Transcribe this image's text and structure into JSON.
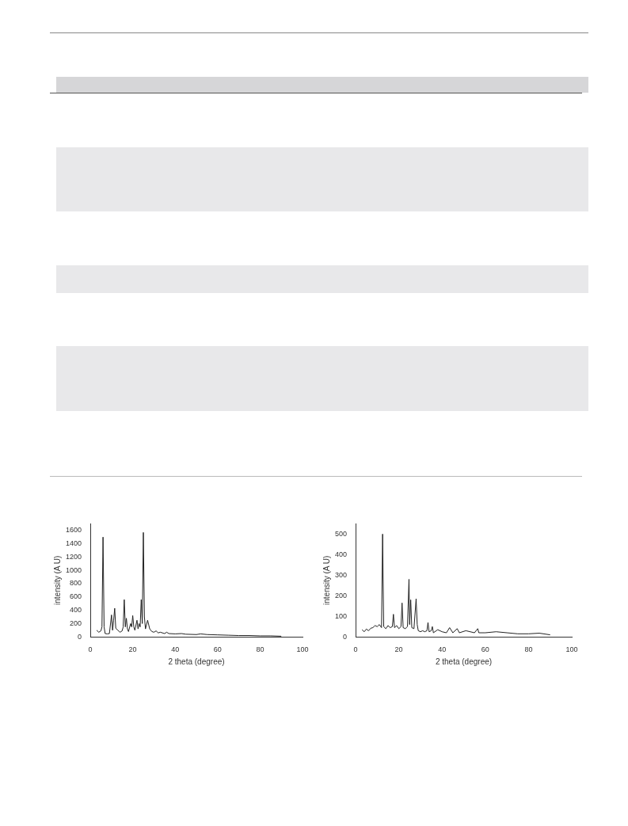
{
  "chart_data": [
    {
      "type": "line",
      "xlabel": "2 theta (degree)",
      "ylabel": "intensity (A U)",
      "xlim": [
        0,
        100
      ],
      "xticks": [
        0,
        20,
        40,
        60,
        80,
        100
      ],
      "ylim": [
        0,
        1700
      ],
      "yticks": [
        0,
        200,
        400,
        600,
        800,
        1000,
        1200,
        1400,
        1600
      ],
      "grid": false,
      "legend": false,
      "marker": "none",
      "line_style": "solid",
      "series": [
        {
          "color": "#222222",
          "x": [
            3,
            4,
            5,
            5.5,
            6,
            6.5,
            7,
            8,
            9,
            10,
            10.5,
            11,
            11.5,
            12,
            13,
            14,
            15,
            15.5,
            16,
            16.5,
            17,
            17.5,
            18,
            19,
            19.5,
            20,
            20.5,
            21,
            22,
            22.5,
            23,
            23.5,
            24,
            24.5,
            25,
            25.5,
            26,
            27,
            28,
            29,
            30,
            31,
            32,
            33,
            35,
            36,
            37,
            40,
            43,
            45,
            50,
            52,
            55,
            60,
            65,
            70,
            75,
            80,
            85,
            90
          ],
          "values": [
            100,
            70,
            90,
            150,
            1500,
            150,
            50,
            45,
            50,
            330,
            100,
            250,
            430,
            130,
            100,
            70,
            90,
            150,
            560,
            150,
            280,
            120,
            80,
            200,
            150,
            320,
            150,
            100,
            250,
            120,
            200,
            150,
            560,
            200,
            1570,
            300,
            120,
            250,
            120,
            80,
            70,
            90,
            60,
            70,
            50,
            70,
            50,
            45,
            50,
            40,
            35,
            45,
            35,
            30,
            25,
            20,
            20,
            15,
            15,
            10
          ]
        }
      ]
    },
    {
      "type": "line",
      "xlabel": "2 theta (degree)",
      "ylabel": "intensity (A U)",
      "xlim": [
        0,
        100
      ],
      "xticks": [
        0,
        20,
        40,
        60,
        80,
        100
      ],
      "ylim": [
        0,
        550
      ],
      "yticks": [
        0,
        100,
        200,
        300,
        400,
        500
      ],
      "grid": false,
      "legend": false,
      "marker": "none",
      "line_style": "solid",
      "series": [
        {
          "color": "#222222",
          "x": [
            3,
            4,
            5,
            6,
            7,
            8,
            9,
            10,
            11,
            12,
            12.5,
            13,
            14,
            15,
            16,
            17,
            17.5,
            18,
            19,
            20,
            21,
            21.5,
            22,
            23,
            24,
            24.7,
            25,
            25.5,
            26,
            27,
            28,
            28.5,
            29,
            30,
            31,
            32,
            33,
            33.5,
            34,
            35,
            35.5,
            36,
            38,
            40,
            42,
            43.5,
            45,
            47,
            48,
            51,
            55,
            56.5,
            57,
            60,
            65,
            70,
            75,
            80,
            85,
            90
          ],
          "values": [
            35,
            25,
            38,
            30,
            42,
            45,
            55,
            50,
            60,
            45,
            500,
            50,
            40,
            55,
            45,
            50,
            110,
            45,
            55,
            40,
            50,
            165,
            45,
            40,
            50,
            280,
            60,
            180,
            45,
            40,
            185,
            60,
            30,
            25,
            30,
            25,
            30,
            70,
            25,
            30,
            50,
            20,
            35,
            25,
            20,
            45,
            20,
            40,
            20,
            30,
            20,
            40,
            20,
            20,
            25,
            20,
            15,
            15,
            18,
            10
          ]
        }
      ]
    }
  ]
}
